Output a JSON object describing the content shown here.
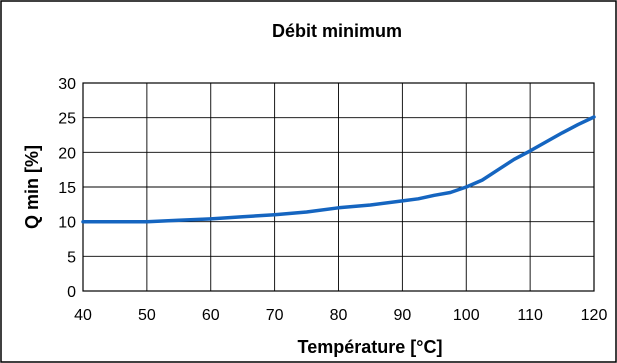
{
  "chart_data": {
    "type": "line",
    "title": "Débit minimum",
    "xlabel": "Température [°C]",
    "ylabel": "Q min [%]",
    "xlim": [
      40,
      120
    ],
    "ylim": [
      0,
      30
    ],
    "x_ticks": [
      "40",
      "50",
      "60",
      "70",
      "80",
      "90",
      "100",
      "110",
      "120"
    ],
    "y_ticks": [
      "0",
      "5",
      "10",
      "15",
      "20",
      "25",
      "30"
    ],
    "grid": true,
    "series": [
      {
        "x": [
          40,
          45,
          50,
          55,
          60,
          65,
          70,
          75,
          80,
          85,
          90,
          92.5,
          95,
          97.5,
          100,
          102.5,
          105,
          107.5,
          110,
          112.5,
          115,
          117.5,
          120
        ],
        "y": [
          10,
          10,
          10,
          10.2,
          10.4,
          10.7,
          11,
          11.4,
          12,
          12.4,
          13,
          13.3,
          13.8,
          14.2,
          15,
          16,
          17.5,
          19,
          20.2,
          21.5,
          22.8,
          24,
          25.1
        ],
        "color": "#1565c0"
      }
    ]
  }
}
